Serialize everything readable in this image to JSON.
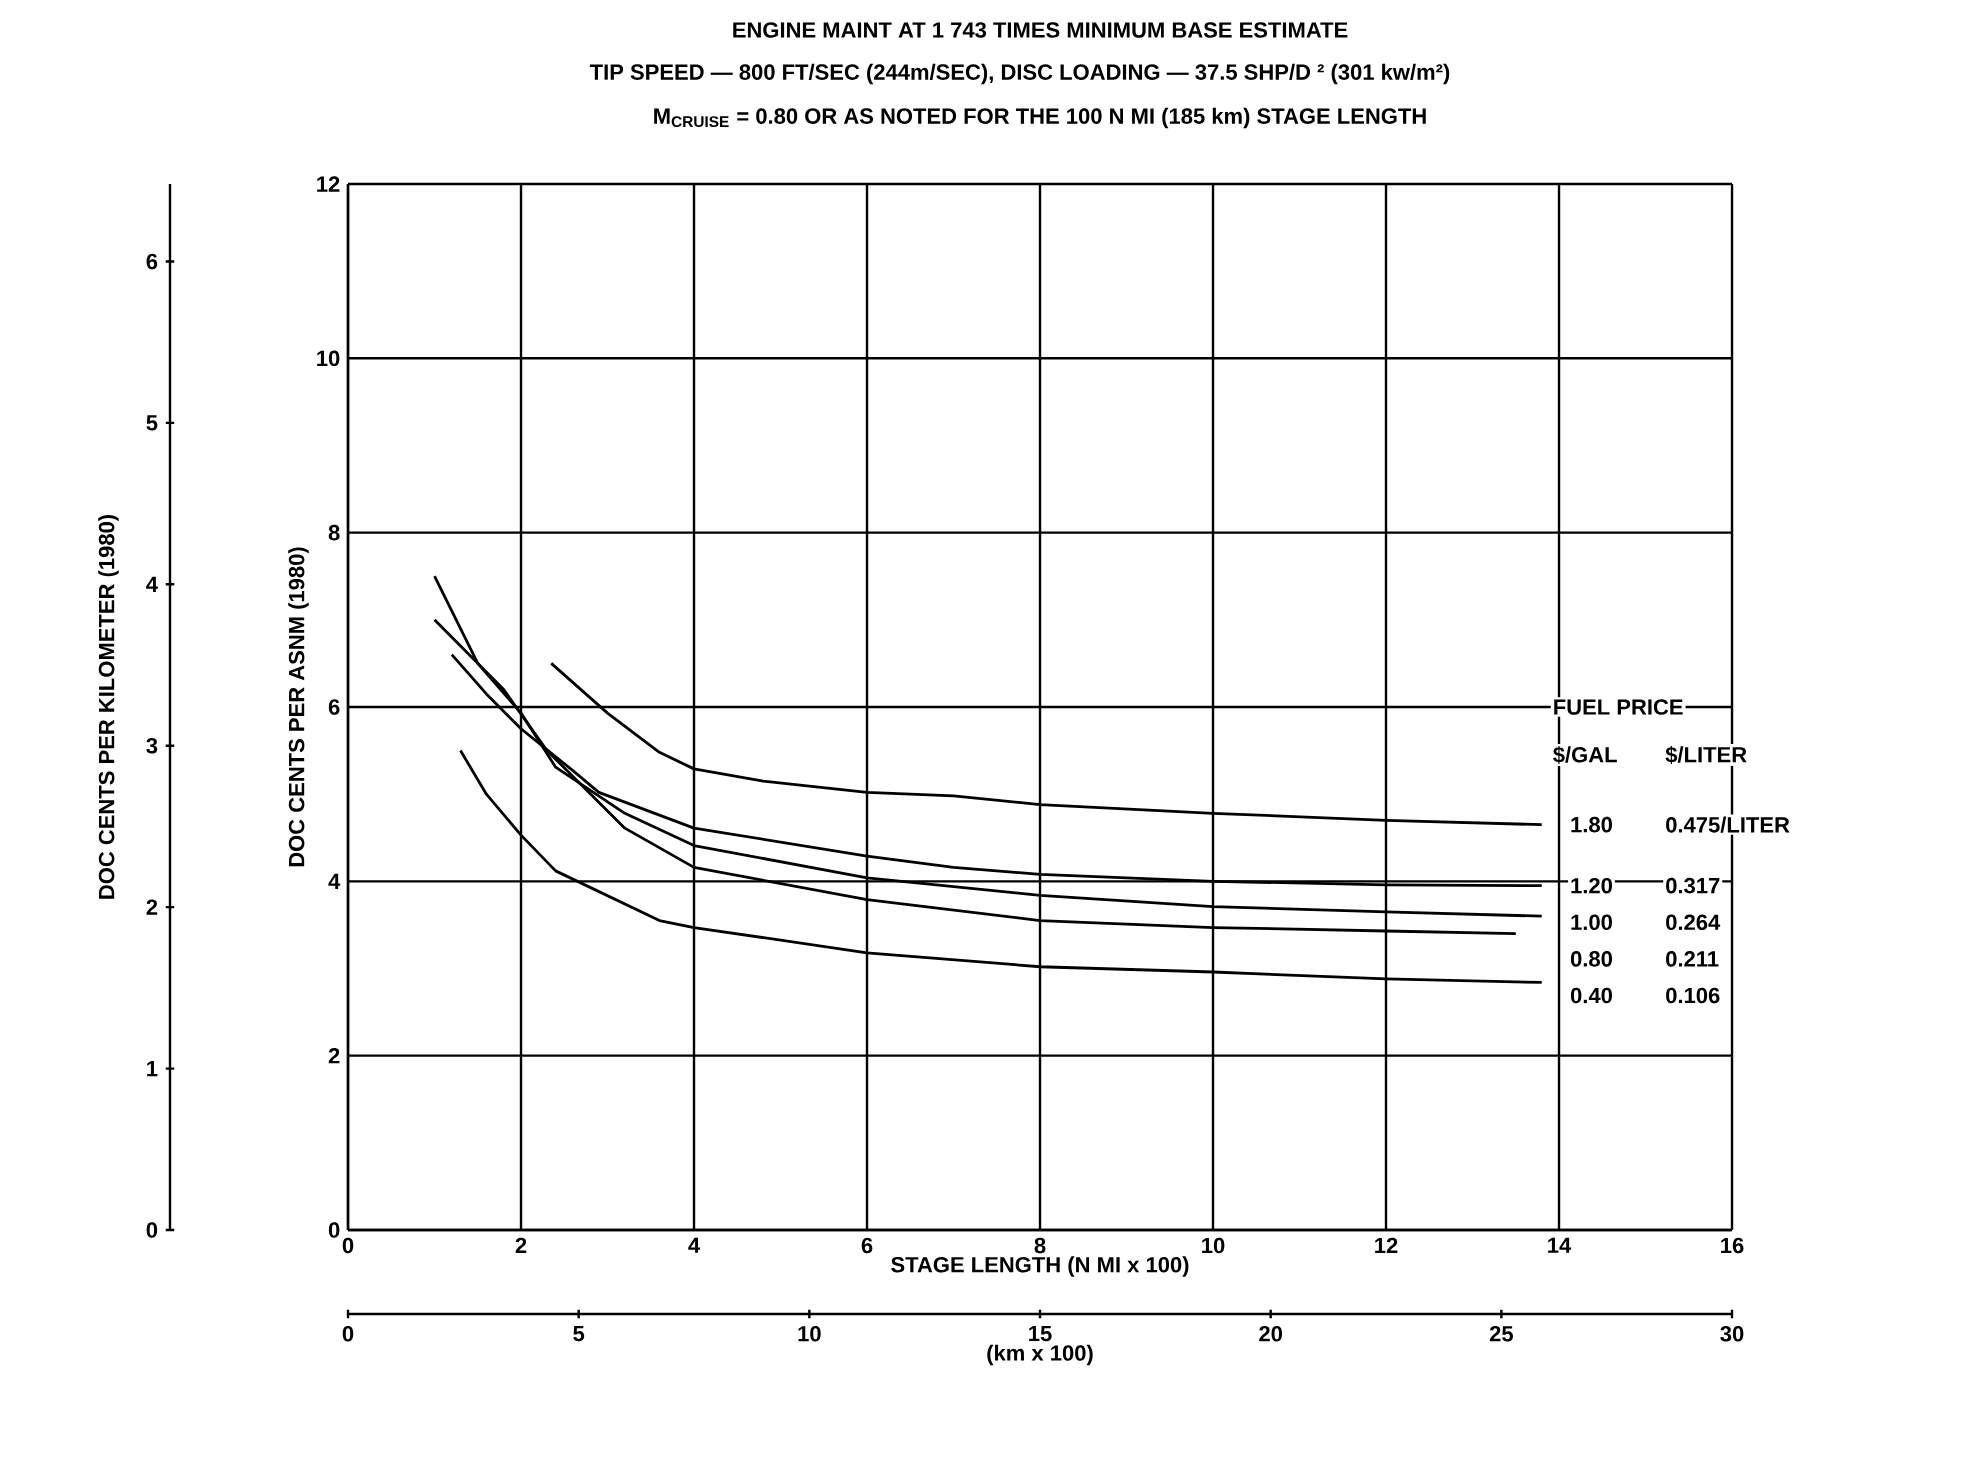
{
  "chart_data": {
    "type": "line",
    "title": "ENGINE MAINT AT 1 743 TIMES MINIMUM BASE ESTIMATE",
    "subtitle": "TIP SPEED — 800 FT/SEC (244m/SEC), DISC LOADING — 37.5 SHP/D ² (301 kw/m²)",
    "annotations": [
      "M$_{CRUISE}$ = 0.80 OR AS NOTED FOR THE 100 N MI (185 km) STAGE LENGTH",
      "FUEL PRICE",
      "$/GAL",
      "$/LITER",
      "0.475/LITER",
      "0.317",
      "0.264",
      "0.211",
      "0.106"
    ],
    "xlabel": "STAGE LENGTH (N MI x 100)",
    "ylabel": "DOC CENTS PER ASNM (1980)",
    "y2label": "DOC CENTS PER KILOMETER (1980)",
    "x2label": "(km x 100)",
    "xlim": [
      0,
      16
    ],
    "xticks": [
      0,
      2,
      4,
      6,
      8,
      10,
      12,
      14,
      16
    ],
    "ylim": [
      0,
      12
    ],
    "yticks": [
      0,
      2,
      4,
      6,
      8,
      10,
      12
    ],
    "y2lim": [
      0,
      6.48
    ],
    "y2ticks": [
      0,
      1,
      2,
      3,
      4,
      5,
      6
    ],
    "x2lim": [
      0,
      30
    ],
    "x2ticks": [
      0,
      5,
      10,
      15,
      20,
      25,
      30
    ],
    "grid": true,
    "marker": "none",
    "series": [
      {
        "name": "1.80",
        "color": "#000000",
        "x": [
          2.35,
          3.0,
          3.6,
          4.0,
          4.8,
          6.0,
          7.0,
          8.0,
          10.0,
          12.0,
          13.8
        ],
        "values": [
          6.5,
          5.93,
          5.48,
          5.29,
          5.15,
          5.02,
          4.98,
          4.88,
          4.78,
          4.7,
          4.65
        ]
      },
      {
        "name": "1.20",
        "color": "#000000",
        "x": [
          1.2,
          1.6,
          2.0,
          2.6,
          2.9,
          4.0,
          6.0,
          7.0,
          8.0,
          10.0,
          12.0,
          13.8
        ],
        "values": [
          6.6,
          6.15,
          5.75,
          5.27,
          5.02,
          4.61,
          4.29,
          4.16,
          4.08,
          4.0,
          3.96,
          3.95
        ]
      },
      {
        "name": "1.00",
        "color": "#000000",
        "x": [
          1.0,
          1.5,
          2.0,
          2.4,
          3.2,
          4.0,
          6.0,
          8.0,
          10.0,
          12.0,
          13.8
        ],
        "values": [
          7.5,
          6.5,
          5.93,
          5.31,
          4.78,
          4.41,
          4.04,
          3.84,
          3.71,
          3.65,
          3.6
        ]
      },
      {
        "name": "0.80",
        "color": "#000000",
        "x": [
          1.0,
          1.8,
          2.3,
          3.2,
          4.0,
          6.0,
          8.0,
          10.0,
          12.0,
          13.5
        ],
        "values": [
          7.0,
          6.2,
          5.5,
          4.61,
          4.16,
          3.79,
          3.55,
          3.47,
          3.43,
          3.4
        ]
      },
      {
        "name": "0.40",
        "color": "#000000",
        "x": [
          1.3,
          1.6,
          2.0,
          2.4,
          3.6,
          4.0,
          6.0,
          8.0,
          10.0,
          12.0,
          13.8
        ],
        "values": [
          5.5,
          5.0,
          4.53,
          4.12,
          3.55,
          3.47,
          3.18,
          3.02,
          2.96,
          2.88,
          2.84
        ]
      }
    ]
  }
}
